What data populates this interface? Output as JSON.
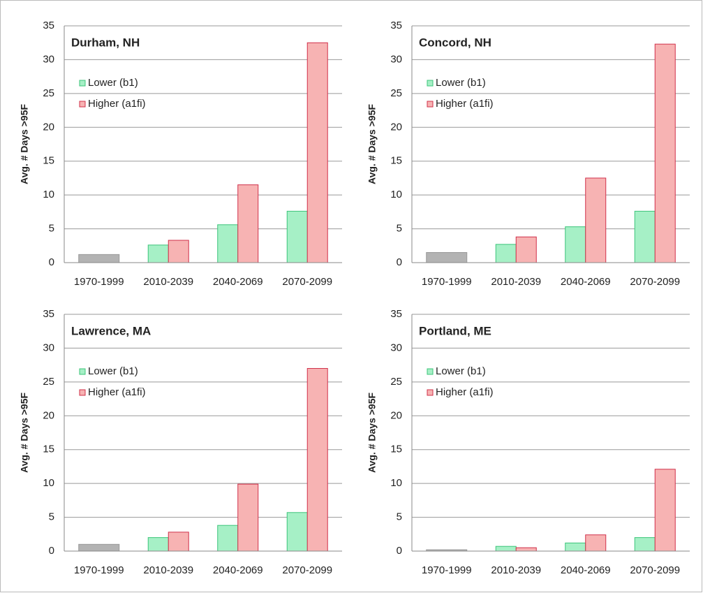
{
  "chart_data": [
    {
      "type": "bar",
      "title": "Durham, NH",
      "ylabel": "Avg. # Days >95F",
      "categories": [
        "1970-1999",
        "2010-2039",
        "2040-2069",
        "2070-2099"
      ],
      "baseline": {
        "color": "#b3b3b3",
        "values": [
          1.2,
          null,
          null,
          null
        ]
      },
      "series": [
        {
          "name": "Lower (b1)",
          "color": "#a6f0c6",
          "values": [
            null,
            2.6,
            5.6,
            7.6
          ]
        },
        {
          "name": "Higher (a1fi)",
          "color": "#f7b3b3",
          "values": [
            null,
            3.3,
            11.5,
            32.5
          ]
        }
      ],
      "ylim": [
        0,
        35
      ],
      "yticks": [
        0,
        5,
        10,
        15,
        20,
        25,
        30,
        35
      ],
      "grid": true
    },
    {
      "type": "bar",
      "title": "Concord, NH",
      "ylabel": "Avg. # Days >95F",
      "categories": [
        "1970-1999",
        "2010-2039",
        "2040-2069",
        "2070-2099"
      ],
      "baseline": {
        "color": "#b3b3b3",
        "values": [
          1.5,
          null,
          null,
          null
        ]
      },
      "series": [
        {
          "name": "Lower (b1)",
          "color": "#a6f0c6",
          "values": [
            null,
            2.7,
            5.3,
            7.6
          ]
        },
        {
          "name": "Higher (a1fi)",
          "color": "#f7b3b3",
          "values": [
            null,
            3.8,
            12.5,
            32.3
          ]
        }
      ],
      "ylim": [
        0,
        35
      ],
      "yticks": [
        0,
        5,
        10,
        15,
        20,
        25,
        30,
        35
      ],
      "grid": true
    },
    {
      "type": "bar",
      "title": "Lawrence, MA",
      "ylabel": "Avg. # Days >95F",
      "categories": [
        "1970-1999",
        "2010-2039",
        "2040-2069",
        "2070-2099"
      ],
      "baseline": {
        "color": "#b3b3b3",
        "values": [
          1.0,
          null,
          null,
          null
        ]
      },
      "series": [
        {
          "name": "Lower (b1)",
          "color": "#a6f0c6",
          "values": [
            null,
            2.0,
            3.8,
            5.7
          ]
        },
        {
          "name": "Higher (a1fi)",
          "color": "#f7b3b3",
          "values": [
            null,
            2.8,
            9.9,
            27.0
          ]
        }
      ],
      "ylim": [
        0,
        35
      ],
      "yticks": [
        0,
        5,
        10,
        15,
        20,
        25,
        30,
        35
      ],
      "grid": true
    },
    {
      "type": "bar",
      "title": "Portland, ME",
      "ylabel": "Avg. # Days >95F",
      "categories": [
        "1970-1999",
        "2010-2039",
        "2040-2069",
        "2070-2099"
      ],
      "baseline": {
        "color": "#b3b3b3",
        "values": [
          0.2,
          null,
          null,
          null
        ]
      },
      "series": [
        {
          "name": "Lower (b1)",
          "color": "#a6f0c6",
          "values": [
            null,
            0.7,
            1.2,
            2.0
          ]
        },
        {
          "name": "Higher (a1fi)",
          "color": "#f7b3b3",
          "values": [
            null,
            0.5,
            2.4,
            12.1
          ]
        }
      ],
      "ylim": [
        0,
        35
      ],
      "yticks": [
        0,
        5,
        10,
        15,
        20,
        25,
        30,
        35
      ],
      "grid": true
    }
  ]
}
